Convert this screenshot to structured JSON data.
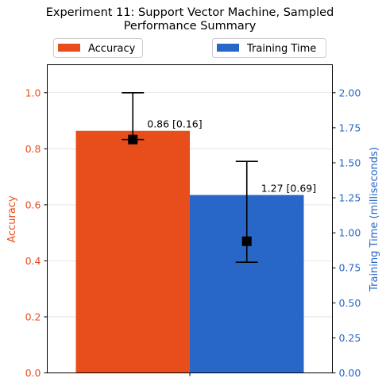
{
  "chart_data": {
    "type": "bar",
    "title_line1": "Experiment 11: Support Vector Machine, Sampled",
    "title_line2": "Performance Summary",
    "xlabel": "",
    "ylabel_left": "Accuracy",
    "ylabel_right": "Training Time (milliseconds)",
    "ylim_left": [
      0,
      1.1
    ],
    "ylim_right": [
      0,
      2.2
    ],
    "left_ticks": [
      "0.0",
      "0.2",
      "0.4",
      "0.6",
      "0.8",
      "1.0"
    ],
    "right_ticks": [
      "0.00",
      "0.25",
      "0.50",
      "0.75",
      "1.00",
      "1.25",
      "1.50",
      "1.75",
      "2.00"
    ],
    "grid": "horizontal",
    "legend_placement": "top",
    "series": [
      {
        "name": "Accuracy",
        "axis": "left",
        "value": 0.864,
        "point": 0.833,
        "err_low": 0.833,
        "err_high": 1.0,
        "label": "0.86 [0.16]",
        "color": "#e84e1b"
      },
      {
        "name": "Training Time",
        "axis": "right",
        "value": 1.27,
        "point": 0.94,
        "err_low": 0.79,
        "err_high": 1.51,
        "label": "1.27 [0.69]",
        "color": "#2866c7"
      }
    ],
    "left_axis_color": "#e84e1b",
    "right_axis_color": "#2866c7"
  }
}
